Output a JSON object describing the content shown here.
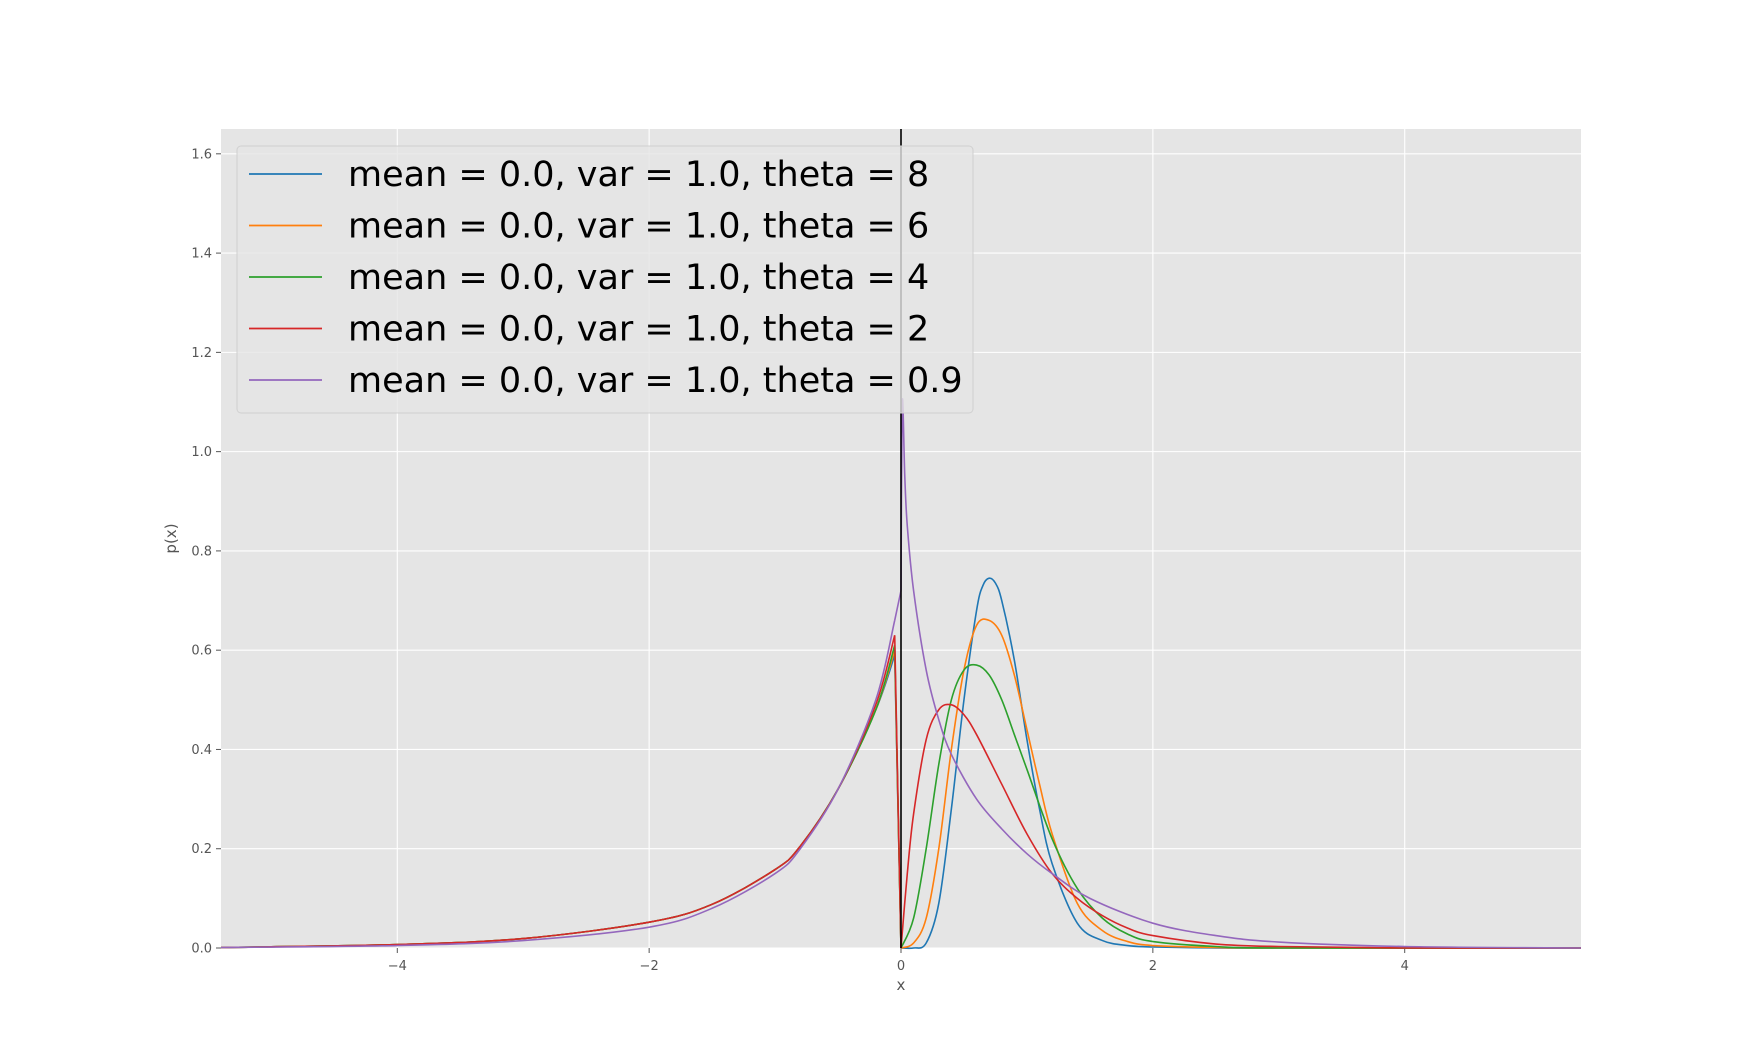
{
  "chart_data": {
    "type": "line",
    "title": "",
    "xlabel": "x",
    "ylabel": "p(x)",
    "xlim": [
      -5.4,
      5.4
    ],
    "ylim": [
      0.0,
      1.65
    ],
    "grid": true,
    "legend_position": "top-left",
    "x_ticks": [
      -4,
      -2,
      0,
      2,
      4
    ],
    "x_tick_labels": [
      "−4",
      "−2",
      "0",
      "2",
      "4"
    ],
    "y_ticks": [
      0.0,
      0.2,
      0.4,
      0.6,
      0.8,
      1.0,
      1.2,
      1.4,
      1.6
    ],
    "y_tick_labels": [
      "0.0",
      "0.2",
      "0.4",
      "0.6",
      "0.8",
      "1.0",
      "1.2",
      "1.4",
      "1.6"
    ],
    "vertical_line_x": 0,
    "series": [
      {
        "name": "mean = 0.0, var = 1.0, theta = 8",
        "color": "#1f77b4",
        "x": [
          -5.4,
          -4.0,
          -3.0,
          -2.0,
          -1.5,
          -1.0,
          -0.8,
          -0.5,
          -0.2,
          -0.05,
          0.0,
          0.1,
          0.2,
          0.3,
          0.4,
          0.5,
          0.6,
          0.65,
          0.7,
          0.75,
          0.8,
          0.9,
          1.0,
          1.1,
          1.2,
          1.4,
          1.6,
          1.8,
          2.0,
          2.5,
          3.0,
          5.4
        ],
        "y": [
          0.001,
          0.007,
          0.019,
          0.052,
          0.088,
          0.158,
          0.205,
          0.32,
          0.48,
          0.59,
          0.0,
          0.0,
          0.01,
          0.09,
          0.28,
          0.5,
          0.68,
          0.73,
          0.745,
          0.735,
          0.7,
          0.58,
          0.42,
          0.28,
          0.17,
          0.05,
          0.015,
          0.005,
          0.002,
          0.0,
          0.0,
          0.0
        ]
      },
      {
        "name": "mean = 0.0, var = 1.0, theta = 6",
        "color": "#ff7f0e",
        "x": [
          -5.4,
          -4.0,
          -3.0,
          -2.0,
          -1.5,
          -1.0,
          -0.8,
          -0.5,
          -0.2,
          -0.05,
          0.0,
          0.1,
          0.2,
          0.3,
          0.4,
          0.5,
          0.6,
          0.7,
          0.8,
          0.9,
          1.0,
          1.1,
          1.2,
          1.4,
          1.6,
          1.8,
          2.0,
          2.5,
          3.0,
          5.4
        ],
        "y": [
          0.001,
          0.007,
          0.019,
          0.052,
          0.088,
          0.158,
          0.205,
          0.32,
          0.48,
          0.6,
          0.0,
          0.01,
          0.06,
          0.2,
          0.4,
          0.56,
          0.65,
          0.66,
          0.63,
          0.55,
          0.44,
          0.33,
          0.23,
          0.09,
          0.035,
          0.013,
          0.005,
          0.001,
          0.0,
          0.0
        ]
      },
      {
        "name": "mean = 0.0, var = 1.0, theta = 4",
        "color": "#2ca02c",
        "x": [
          -5.4,
          -4.0,
          -3.0,
          -2.0,
          -1.5,
          -1.0,
          -0.8,
          -0.5,
          -0.2,
          -0.05,
          0.0,
          0.1,
          0.2,
          0.3,
          0.4,
          0.5,
          0.6,
          0.7,
          0.8,
          0.9,
          1.0,
          1.2,
          1.4,
          1.6,
          1.8,
          2.0,
          2.5,
          3.0,
          5.4
        ],
        "y": [
          0.001,
          0.007,
          0.019,
          0.052,
          0.088,
          0.158,
          0.205,
          0.32,
          0.48,
          0.61,
          0.0,
          0.06,
          0.2,
          0.37,
          0.5,
          0.56,
          0.57,
          0.55,
          0.5,
          0.43,
          0.36,
          0.22,
          0.12,
          0.06,
          0.028,
          0.013,
          0.003,
          0.0,
          0.0
        ]
      },
      {
        "name": "mean = 0.0, var = 1.0, theta = 2",
        "color": "#d62728",
        "x": [
          -5.4,
          -4.0,
          -3.0,
          -2.0,
          -1.5,
          -1.0,
          -0.8,
          -0.5,
          -0.2,
          -0.05,
          0.0,
          0.05,
          0.1,
          0.2,
          0.3,
          0.4,
          0.5,
          0.6,
          0.8,
          1.0,
          1.2,
          1.4,
          1.6,
          1.8,
          2.0,
          2.5,
          3.0,
          4.0,
          5.4
        ],
        "y": [
          0.001,
          0.007,
          0.019,
          0.052,
          0.088,
          0.158,
          0.205,
          0.32,
          0.49,
          0.63,
          0.0,
          0.15,
          0.27,
          0.42,
          0.48,
          0.49,
          0.47,
          0.43,
          0.33,
          0.23,
          0.15,
          0.1,
          0.065,
          0.04,
          0.025,
          0.008,
          0.003,
          0.0,
          0.0
        ]
      },
      {
        "name": "mean = 0.0, var = 1.0, theta = 0.9",
        "color": "#9467bd",
        "x": [
          -5.4,
          -4.0,
          -3.0,
          -2.0,
          -1.5,
          -1.0,
          -0.8,
          -0.5,
          -0.2,
          -0.05,
          0.0,
          0.01,
          0.03,
          0.05,
          0.1,
          0.2,
          0.3,
          0.4,
          0.6,
          0.8,
          1.0,
          1.2,
          1.5,
          2.0,
          2.5,
          3.0,
          4.0,
          5.4
        ],
        "y": [
          0.001,
          0.005,
          0.015,
          0.042,
          0.08,
          0.15,
          0.2,
          0.32,
          0.5,
          0.66,
          0.72,
          1.1,
          0.95,
          0.85,
          0.72,
          0.56,
          0.46,
          0.39,
          0.3,
          0.24,
          0.19,
          0.15,
          0.1,
          0.05,
          0.025,
          0.012,
          0.003,
          0.0
        ]
      }
    ]
  }
}
